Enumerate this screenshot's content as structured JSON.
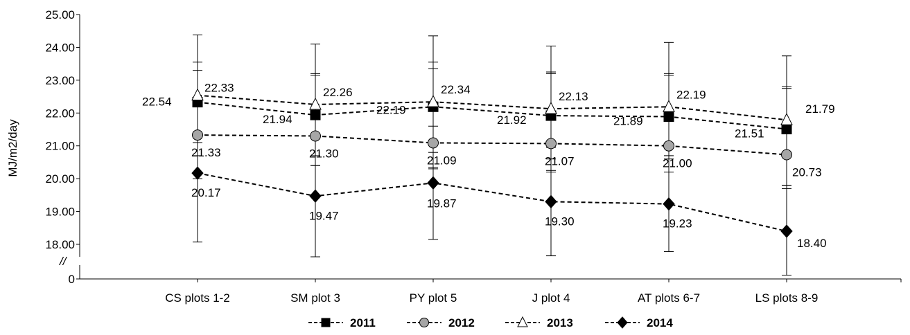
{
  "chart_data": {
    "type": "line",
    "ylabel": "MJ/m2/day",
    "axis_break_label": "//",
    "ylim": [
      18.0,
      25.0
    ],
    "yticks": [
      "25.00",
      "24.00",
      "23.00",
      "22.00",
      "21.00",
      "20.00",
      "19.00",
      "18.00"
    ],
    "ybase_tick": "0",
    "categories": [
      "CS plots 1-2",
      "SM plot 3",
      "PY plot 5",
      "J plot 4",
      "AT plots 6-7",
      "LS plots 8-9"
    ],
    "series": [
      {
        "name": "2011",
        "marker": "square",
        "color": "#000000",
        "values": [
          22.33,
          21.94,
          22.19,
          21.92,
          21.89,
          21.51
        ],
        "labels": [
          "22.33",
          "21.94",
          "22.19",
          "21.92",
          "21.89",
          "21.51"
        ],
        "error_low": [
          21.1,
          20.7,
          20.8,
          20.6,
          20.6,
          19.8
        ],
        "error_high": [
          23.55,
          23.2,
          23.55,
          23.25,
          23.2,
          22.8
        ]
      },
      {
        "name": "2012",
        "marker": "circle",
        "color": "#a6a6a6",
        "values": [
          21.33,
          21.3,
          21.09,
          21.07,
          21.0,
          20.73
        ],
        "labels": [
          "21.33",
          "21.30",
          "21.09",
          "21.07",
          "21.00",
          "20.73"
        ],
        "error_low": [
          20.0,
          20.4,
          20.3,
          20.25,
          20.2,
          19.7
        ],
        "error_high": [
          23.3,
          23.15,
          23.35,
          23.2,
          23.15,
          22.75
        ]
      },
      {
        "name": "2013",
        "marker": "triangle",
        "color": "#ffffff",
        "values": [
          22.54,
          22.26,
          22.34,
          22.13,
          22.19,
          21.79
        ],
        "labels": [
          "22.54",
          "22.26",
          "22.34",
          "22.13",
          "22.19",
          "21.79"
        ],
        "error_low": [
          20.7,
          20.4,
          20.35,
          20.2,
          20.7,
          19.8
        ],
        "error_high": [
          24.38,
          24.1,
          24.35,
          24.04,
          24.15,
          23.74
        ]
      },
      {
        "name": "2014",
        "marker": "diamond",
        "color": "#000000",
        "values": [
          20.17,
          19.47,
          19.87,
          19.3,
          19.23,
          18.4
        ],
        "labels": [
          "20.17",
          "19.47",
          "19.87",
          "19.30",
          "19.23",
          "18.40"
        ],
        "error_low": [
          18.07,
          17.62,
          18.15,
          17.65,
          17.78,
          17.06
        ],
        "error_high": [
          21.4,
          21.3,
          21.6,
          20.95,
          20.7,
          19.8
        ]
      }
    ],
    "legend_position": "bottom-center",
    "grid": false
  }
}
